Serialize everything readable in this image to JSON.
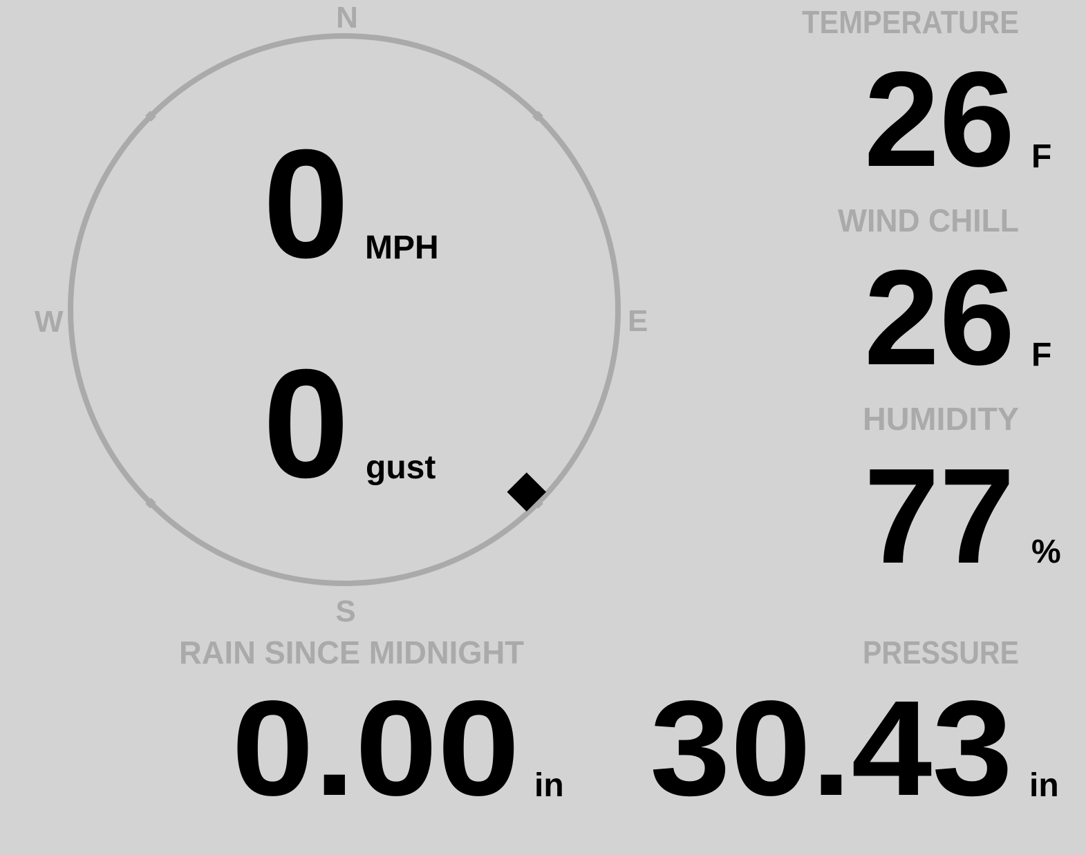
{
  "compass": {
    "north": "N",
    "east": "E",
    "south": "S",
    "west": "W",
    "direction_degrees": 135,
    "ring_color": "#aaaaaa",
    "marker_color": "#000000"
  },
  "wind": {
    "speed": "0",
    "speed_unit": "MPH",
    "gust": "0",
    "gust_unit": "gust"
  },
  "temperature": {
    "label": "TEMPERATURE",
    "value": "26",
    "unit": "F"
  },
  "wind_chill": {
    "label": "WIND CHILL",
    "value": "26",
    "unit": "F"
  },
  "humidity": {
    "label": "HUMIDITY",
    "value": "77",
    "unit": "%"
  },
  "pressure": {
    "label": "PRESSURE",
    "value": "30.43",
    "unit": "in"
  },
  "rain": {
    "label": "RAIN SINCE MIDNIGHT",
    "value": "0.00",
    "unit": "in"
  },
  "colors": {
    "background": "#d3d3d3",
    "label": "#aaaaaa",
    "value": "#000000"
  }
}
